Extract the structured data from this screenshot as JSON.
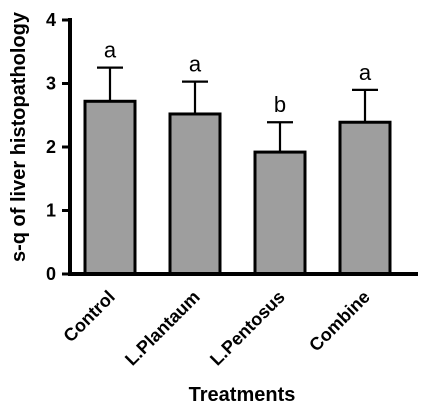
{
  "chart_data": {
    "type": "bar",
    "title": "",
    "xlabel": "Treatments",
    "ylabel": "s-q of liver histopathology",
    "categories": [
      "Control",
      "L.Plantaum",
      "L.Pentosus",
      "Combine"
    ],
    "values": [
      2.72,
      2.52,
      1.92,
      2.39
    ],
    "error_upper": [
      3.25,
      3.03,
      2.39,
      2.9
    ],
    "data_labels": [
      "a",
      "a",
      "b",
      "a"
    ],
    "ylim": [
      0,
      4
    ],
    "yticks": [
      "0",
      "1",
      "2",
      "3",
      "4"
    ],
    "bar_color": "#9e9e9e",
    "grid": false,
    "legend": "none"
  }
}
